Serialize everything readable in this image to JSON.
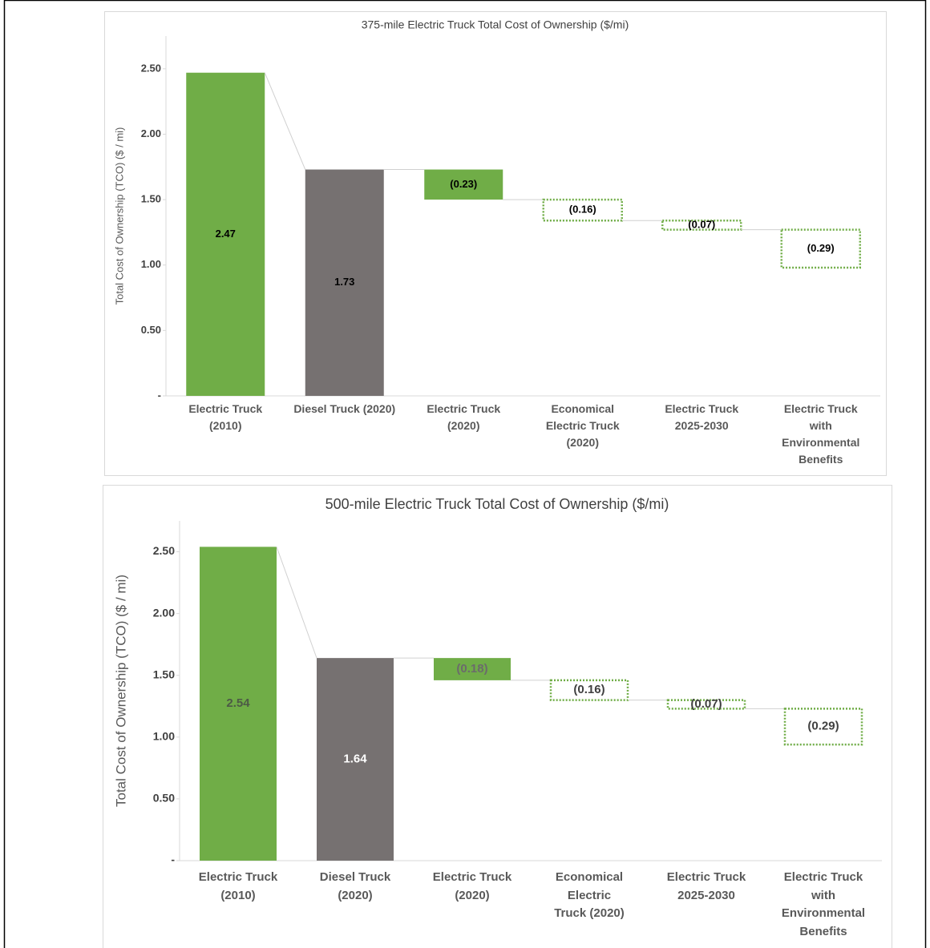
{
  "chart_data": [
    {
      "type": "waterfall",
      "title": "375-mile Electric Truck Total Cost of Ownership ($/mi)",
      "y_label": "Total Cost of Ownership (TCO) ($ / mi)",
      "categories": [
        "Electric Truck (2010)",
        "Diesel Truck (2020)",
        "Electric Truck (2020)",
        "Economical Electric Truck (2020)",
        "Electric Truck 2025-2030",
        "Electric Truck with Environmental Benefits"
      ],
      "values": [
        2.47,
        1.73,
        -0.23,
        -0.16,
        -0.07,
        -0.29
      ],
      "value_labels": [
        "2.47",
        "1.73",
        "(0.23)",
        "(0.16)",
        "(0.07)",
        "(0.29)"
      ],
      "measure": [
        "absolute",
        "absolute",
        "relative",
        "relative",
        "relative",
        "relative"
      ],
      "colors": [
        "#70ad47",
        "#767171",
        "#70ad47",
        "#70ad47",
        "#70ad47",
        "#70ad47"
      ],
      "bar_styles": [
        "solid",
        "solid",
        "solid",
        "dotted",
        "dotted",
        "dotted"
      ],
      "label_colors": [
        "#000000",
        "#000000",
        "#000000",
        "#000000",
        "#000000",
        "#000000"
      ],
      "ylim": [
        0,
        2.75
      ],
      "yticks": [
        {
          "value": 0,
          "label": "-"
        },
        {
          "value": 0.5,
          "label": "0.50"
        },
        {
          "value": 1,
          "label": "1.00"
        },
        {
          "value": 1.5,
          "label": "1.50"
        },
        {
          "value": 2,
          "label": "2.00"
        },
        {
          "value": 2.5,
          "label": "2.50"
        }
      ]
    },
    {
      "type": "waterfall",
      "title": "500-mile Electric Truck Total Cost of Ownership ($/mi)",
      "y_label": "Total Cost of Ownership (TCO) ($ / mi)",
      "categories": [
        "Electric Truck (2010)",
        "Diesel Truck (2020)",
        "Electric Truck (2020)",
        "Economical Electric Truck (2020)",
        "Electric Truck 2025-2030",
        "Electric Truck with Environmental Benefits"
      ],
      "values": [
        2.54,
        1.64,
        -0.18,
        -0.16,
        -0.07,
        -0.29
      ],
      "value_labels": [
        "2.54",
        "1.64",
        "(0.18)",
        "(0.16)",
        "(0.07)",
        "(0.29)"
      ],
      "measure": [
        "absolute",
        "absolute",
        "relative",
        "relative",
        "relative",
        "relative"
      ],
      "colors": [
        "#70ad47",
        "#767171",
        "#70ad47",
        "#70ad47",
        "#70ad47",
        "#70ad47"
      ],
      "bar_styles": [
        "solid",
        "solid",
        "solid",
        "dotted",
        "dotted",
        "dotted"
      ],
      "label_colors": [
        "#4d5a46",
        "#ffffff",
        "#6b6b6b",
        "#404040",
        "#404040",
        "#404040"
      ],
      "ylim": [
        0,
        2.75
      ],
      "yticks": [
        {
          "value": 0,
          "label": "-"
        },
        {
          "value": 0.5,
          "label": "0.50"
        },
        {
          "value": 1,
          "label": "1.00"
        },
        {
          "value": 1.5,
          "label": "1.50"
        },
        {
          "value": 2,
          "label": "2.00"
        },
        {
          "value": 2.5,
          "label": "2.50"
        }
      ]
    }
  ]
}
